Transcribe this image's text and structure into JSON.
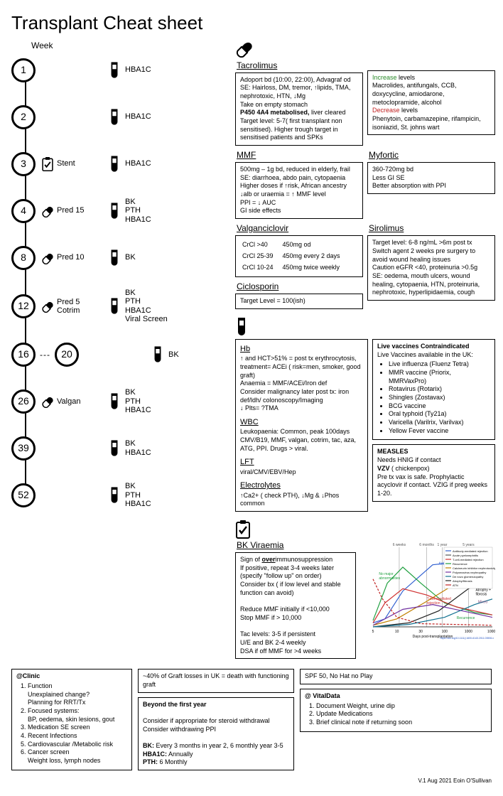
{
  "title": "Transplant Cheat sheet",
  "week_label": "Week",
  "footer": "V.1 Aug 2021 Eoin O'Sullivan",
  "colors": {
    "increase": "#2a8a2a",
    "decrease": "#c02020",
    "border": "#000000"
  },
  "timeline": [
    {
      "week": "1",
      "mid_icon": null,
      "mid_text": "",
      "tests": "HBA1C"
    },
    {
      "week": "2",
      "mid_icon": null,
      "mid_text": "",
      "tests": "HBA1C"
    },
    {
      "week": "3",
      "mid_icon": "clipboard",
      "mid_text": "Stent",
      "tests": "HBA1C"
    },
    {
      "week": "4",
      "mid_icon": "pill",
      "mid_text": "Pred 15",
      "tests": "BK\nPTH\nHBA1C"
    },
    {
      "week": "8",
      "mid_icon": "pill",
      "mid_text": "Pred 10",
      "tests": "BK"
    },
    {
      "week": "12",
      "mid_icon": "pill",
      "mid_text": "Pred 5\nCotrim",
      "tests": "BK\nPTH\nHBA1C\nViral Screen"
    },
    {
      "week": "16",
      "week2": "20",
      "mid_icon": null,
      "mid_text": "",
      "tests": "BK"
    },
    {
      "week": "26",
      "mid_icon": "pill",
      "mid_text": "Valgan",
      "tests": "BK\nPTH\nHBA1C"
    },
    {
      "week": "39",
      "mid_icon": null,
      "mid_text": "",
      "tests": "BK\nHBA1C"
    },
    {
      "week": "52",
      "mid_icon": null,
      "mid_text": "",
      "tests": "BK\nPTH\nHBA1C"
    }
  ],
  "tacrolimus": {
    "title": "Tacrolimus",
    "body": "Adoport bd (10:00, 22:00), Advagraf od\nSE: Hairloss, DM, tremor, ↑lipids, TMA, nephrotoxic, HTN, ↓Mg\nTake on empty stomach",
    "bold1": "P450 4A4 metabolised,",
    "bold1_after": " liver cleared",
    "body2": "Target level: 5-7( first transplant non sensitised). Higher trough target in sensitised patients and SPKs"
  },
  "tac_interact": {
    "inc_label": "Increase",
    "inc_after": " levels",
    "inc_body": "Macrolides, antifungals, CCB, doxycycline, amiodarone, metoclopramide, alcohol",
    "dec_label": "Decrease",
    "dec_after": " levels",
    "dec_body": "Phenytoin, carbamazepine, rifampicin, isoniazid, St. johns wart"
  },
  "mmf": {
    "title": "MMF",
    "body": "500mg – 1g bd, reduced in elderly, frail\nSE: diarrhoea, abdo pain, cytopaenia\nHigher doses if ↑risk, African ancestry\n↓alb or uraemia = ↑ MMF level\nPPI = ↓ AUC\nGI side effects"
  },
  "myfortic": {
    "title": "Myfortic",
    "body": "360-720mg bd\nLess GI SE\nBetter absorption with PPI"
  },
  "valgan": {
    "title": "Valganciclovir",
    "rows": [
      [
        "CrCl >40",
        "450mg od"
      ],
      [
        "CrCl 25-39",
        "450mg every 2 days"
      ],
      [
        "CrCl 10-24",
        "450mg twice weekly"
      ]
    ]
  },
  "ciclo": {
    "title": "Ciclosporin",
    "body": "Target Level = 100(ish)"
  },
  "sirolimus": {
    "title": "Sirolimus",
    "body": "Target level: 6-8 ng/mL >6m post tx\nSwitch agent 2 weeks pre surgery to avoid wound healing issues\nCaution eGFR <40, proteinuria >0.5g\nSE: oedema, mouth ulcers, wound healing, cytopaenia, HTN, proteinuria, nephrotoxic, hyperlipidaemia, cough"
  },
  "labs": {
    "hb_title": "Hb",
    "hb_body": "↑ and HCT>51% = post tx erythrocytosis, treatment= ACEi ( risk=men, smoker, good graft)\nAnaemia = MMF/ACEi/Iron def\nConsider malignancy later post tx: iron def/ldh/ colonoscopy/Imaging\n↓ Plts= ?TMA",
    "wbc_title": "WBC",
    "wbc_body": "Leukopaenia: Common, peak 100days CMV/B19, MMF, valgan, cotrim, tac, aza, ATG, PPI. Drugs > viral.",
    "lft_title": "LFT",
    "lft_body": "viral/CMV/EBV/Hep",
    "elec_title": "Electrolytes",
    "elec_body": "↑Ca2+ ( check PTH), ↓Mg & ↓Phos common"
  },
  "vaccines": {
    "title": "Live vaccines Contraindicated",
    "subtitle": "Live Vaccines available in the UK:",
    "items": [
      "Live influenza (Fluenz Tetra)",
      "MMR vaccine (Priorix, MMRVaxPro)",
      "Rotavirus (Rotarix)",
      "Shingles (Zostavax)",
      "BCG vaccine",
      "Oral typhoid (Ty21a)",
      "Varicella (Varilrix, Varilvax)",
      "Yellow Fever vaccine"
    ]
  },
  "measles": {
    "m_title": "MEASLES",
    "m_body": "Needs HNIG if contact",
    "v_title": "VZV",
    "v_after": " ( chickenpox)",
    "v_body": "Pre tx vax is safe. Prophylactic acyclovir if contact. VZIG if preg weeks 1-20."
  },
  "bk": {
    "title": "BK Viraemia",
    "l1": "Sign of ",
    "l1b": "over",
    "l1c": "immunosuppression",
    "body1": "If positive, repeat 3-4 weeks later (specify \"follow up\" on order)\nConsider bx ( if low level and stable function can avoid)",
    "body2": "Reduce MMF initially if <10,000\nStop MMF if > 10,000",
    "body3": "Tac levels: 3-5 if persistent\nU/E and BK 2-4 weekly\nDSA if off MMF for >4 weeks"
  },
  "clinic": {
    "title": "@Clinic",
    "items": [
      "Function\n    Unexplained change?\n    Planning for RRT/Tx",
      "Focused systems:\n    BP, oedema, skin lesions, gout",
      "Medication SE screen",
      "Recent Infections",
      "Cardiovascular /Metabolic risk",
      "Cancer screen\n    Weight loss, lymph nodes"
    ]
  },
  "graft_loss": "~40% of Graft losses in UK = death with functioning graft",
  "beyond": {
    "title": "Beyond the first year",
    "body1": "Consider if appropriate for steroid withdrawal\nConsider withdrawing PPI",
    "bk_label": "BK:",
    "bk": " Every 3 months in year 2, 6 monthly year 3-5",
    "hba_label": "HBA1C:",
    "hba": " Annually",
    "pth_label": "PTH:",
    "pth": " 6 Monthly"
  },
  "spf": "SPF 50, No Hat no Play",
  "vital": {
    "title": "@ VitalData",
    "items": [
      "Document Weight, urine dip",
      "Update Medications",
      "Brief clinical note if returning soon"
    ]
  },
  "chart": {
    "xlabel": "Days post-transplantation",
    "xticks": [
      "5",
      "10",
      "30",
      "100",
      "1000",
      "10000"
    ],
    "markers": [
      "6 weeks",
      "6 months",
      "1 year",
      "5 years"
    ],
    "legend": [
      "Antibody-mediated rejection",
      "Acute pyelonephritis",
      "T-cell-mediated rejection",
      "Recurrence",
      "Calcineurin inhibitor nephrotoxicity",
      "Polyomavirus nephropathy",
      "De novo glomerulopathy",
      "Atrophy/fibrosis",
      "ATN"
    ],
    "colors": {
      "antibody": "#2f5fd0",
      "pyelonephritis": "#555555",
      "tcell": "#d03030",
      "recurrence": "#20a040",
      "cni": "#c08000",
      "polyoma": "#7030a0",
      "denovo": "#107090",
      "atrophy": "#202020",
      "atn": "#c02020"
    },
    "annotations": [
      "No major abnormalities",
      "Antibody-mediated rejection",
      "T-cell-mediated rejection",
      "Recurrence",
      "Calcineurin nephrotoxicity",
      "Atrophy + fibrosis",
      "Mixed"
    ],
    "citation": "https://doi.org/10.1111/j.1600-6143.2011.03906.x"
  }
}
